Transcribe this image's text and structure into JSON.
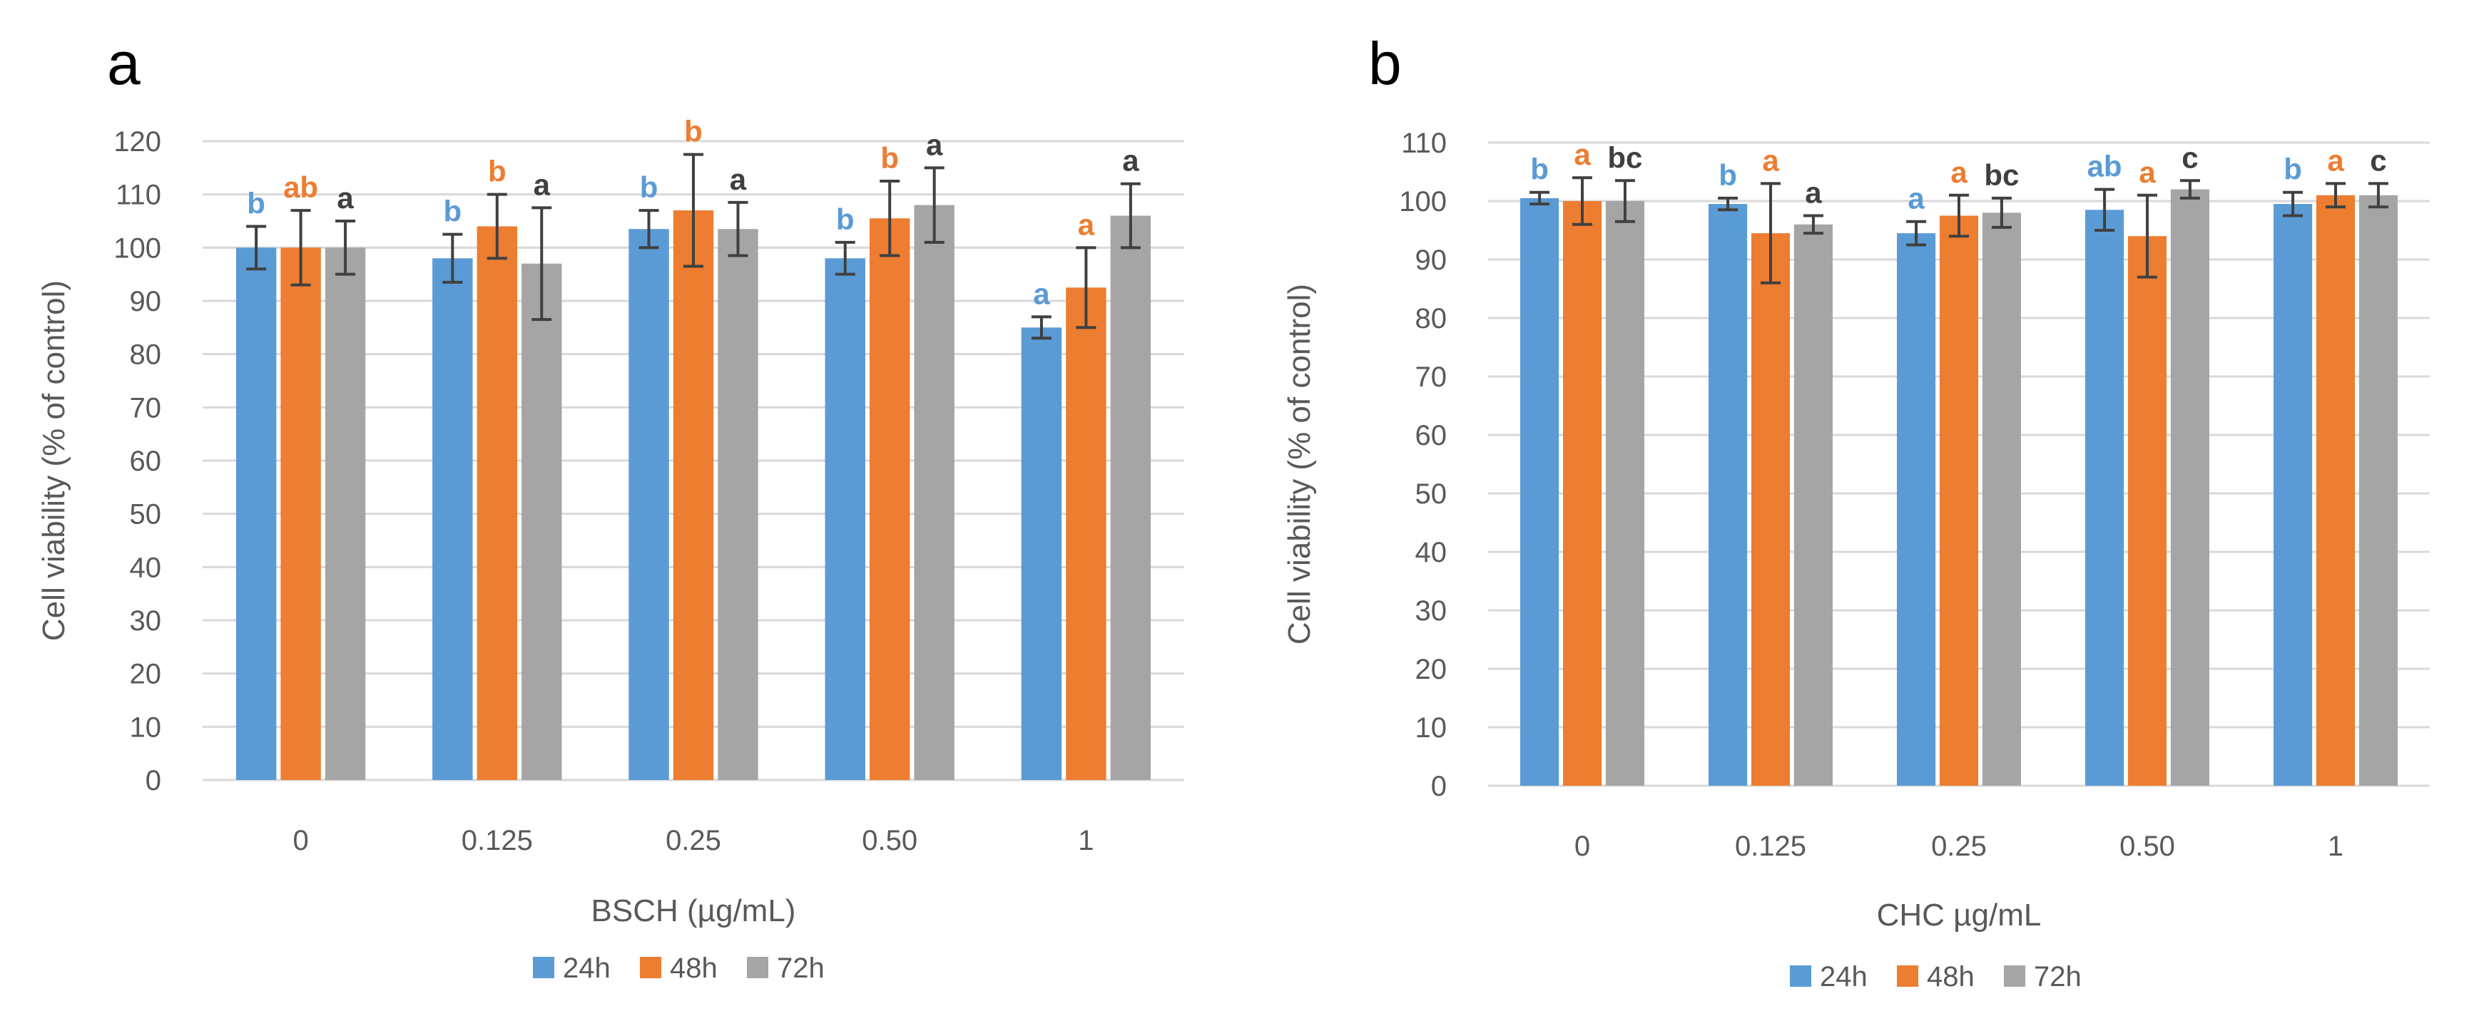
{
  "chart_data": [
    {
      "type": "bar",
      "panel_label": "a",
      "categories": [
        "0",
        "0.125",
        "0.25",
        "0.50",
        "1"
      ],
      "xlabel": "BSCH (µg/mL)",
      "ylabel": "Cell viability (% of control)",
      "ylim": [
        0,
        120
      ],
      "yticks": [
        0,
        10,
        20,
        30,
        40,
        50,
        60,
        70,
        80,
        90,
        100,
        110,
        120
      ],
      "grid": true,
      "legend_position": "bottom",
      "series": [
        {
          "name": "24h",
          "color": "#5b9bd5",
          "values": [
            100,
            98,
            103.5,
            98,
            85
          ],
          "errors": [
            4,
            4.5,
            3.5,
            3,
            2
          ],
          "labels": [
            "b",
            "b",
            "b",
            "b",
            "a"
          ]
        },
        {
          "name": "48h",
          "color": "#ed7d31",
          "values": [
            100,
            104,
            107,
            105.5,
            92.5
          ],
          "errors": [
            7,
            6,
            10.5,
            7,
            7.5
          ],
          "labels": [
            "ab",
            "b",
            "b",
            "b",
            "a"
          ]
        },
        {
          "name": "72h",
          "color": "#a5a5a5",
          "values": [
            100,
            97,
            103.5,
            108,
            106
          ],
          "errors": [
            5,
            10.5,
            5,
            7,
            6
          ],
          "labels": [
            "a",
            "a",
            "a",
            "a",
            "a"
          ]
        }
      ]
    },
    {
      "type": "bar",
      "panel_label": "b",
      "categories": [
        "0",
        "0.125",
        "0.25",
        "0.50",
        "1"
      ],
      "xlabel": "CHC µg/mL",
      "ylabel": "Cell  viability  (% of control)",
      "ylim": [
        0,
        110
      ],
      "yticks": [
        0,
        10,
        20,
        30,
        40,
        50,
        60,
        70,
        80,
        90,
        100,
        110
      ],
      "grid": true,
      "legend_position": "bottom",
      "series": [
        {
          "name": "24h",
          "color": "#5b9bd5",
          "values": [
            100.5,
            99.5,
            94.5,
            98.5,
            99.5
          ],
          "errors": [
            1,
            1,
            2,
            3.5,
            2
          ],
          "labels": [
            "b",
            "b",
            "a",
            "ab",
            "b"
          ]
        },
        {
          "name": "48h",
          "color": "#ed7d31",
          "values": [
            100,
            94.5,
            97.5,
            94,
            101
          ],
          "errors": [
            4,
            8.5,
            3.5,
            7,
            2
          ],
          "labels": [
            "a",
            "a",
            "a",
            "a",
            "a"
          ]
        },
        {
          "name": "72h",
          "color": "#a5a5a5",
          "values": [
            100,
            96,
            98,
            102,
            101
          ],
          "errors": [
            3.5,
            1.5,
            2.5,
            1.5,
            2
          ],
          "labels": [
            "bc",
            "a",
            "bc",
            "c",
            "c"
          ]
        }
      ]
    }
  ]
}
